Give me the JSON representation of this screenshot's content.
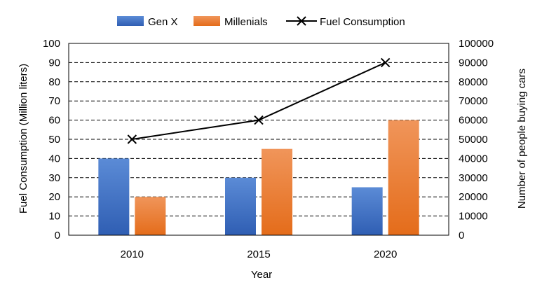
{
  "chart_data": {
    "type": "bar",
    "categories": [
      "2010",
      "2015",
      "2020"
    ],
    "xlabel": "Year",
    "ylabel_left": "Fuel Consumption (Million liters)",
    "ylabel_right": "Number of people buying cars",
    "ylim_left": [
      0,
      100
    ],
    "ylim_right": [
      0,
      100000
    ],
    "yticks_left": [
      "0",
      "10",
      "20",
      "30",
      "40",
      "50",
      "60",
      "70",
      "80",
      "90",
      "100"
    ],
    "yticks_right": [
      "0",
      "10000",
      "20000",
      "30000",
      "40000",
      "50000",
      "60000",
      "70000",
      "80000",
      "90000",
      "100000"
    ],
    "grid": "horizontal-dashed",
    "legend_position": "top",
    "series": [
      {
        "name": "Gen X",
        "type": "bar",
        "axis": "right",
        "values": [
          40000,
          30000,
          25000
        ],
        "color": "#4472C4"
      },
      {
        "name": "Millenials",
        "type": "bar",
        "axis": "right",
        "values": [
          20000,
          45000,
          60000
        ],
        "color": "#ED7D31"
      },
      {
        "name": "Fuel Consumption",
        "type": "line",
        "axis": "left",
        "values": [
          50,
          60,
          90
        ],
        "color": "#000000",
        "marker": "x"
      }
    ]
  }
}
